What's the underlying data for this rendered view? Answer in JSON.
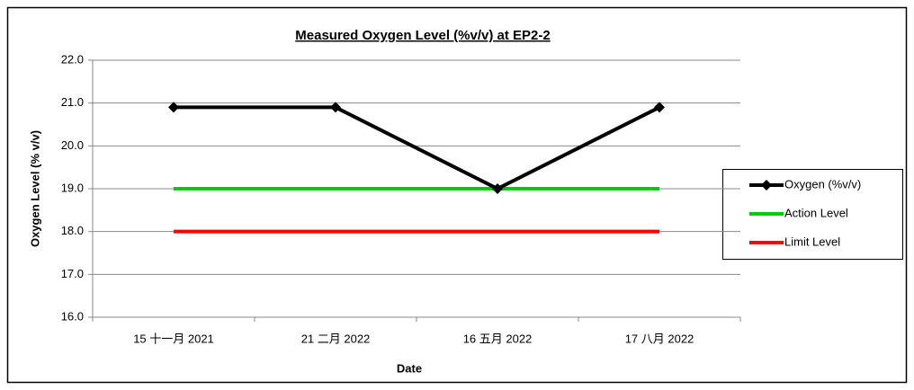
{
  "chart_data": {
    "type": "line",
    "title": "Measured Oxygen Level (%v/v) at EP2-2",
    "xlabel": "Date",
    "ylabel": "Oxygen Level (% v/v)",
    "categories": [
      "15 十一月 2021",
      "21 二月 2022",
      "16 五月 2022",
      "17 八月 2022"
    ],
    "series": [
      {
        "name": "Oxygen (%v/v)",
        "color": "#000000",
        "marker": "diamond",
        "values": [
          20.9,
          20.9,
          19.0,
          20.9
        ]
      },
      {
        "name": "Action Level",
        "color": "#00cc00",
        "values": [
          19.0,
          19.0,
          19.0,
          19.0
        ]
      },
      {
        "name": "Limit Level",
        "color": "#ff0000",
        "values": [
          18.0,
          18.0,
          18.0,
          18.0
        ]
      }
    ],
    "ylim": [
      16,
      22
    ],
    "yticks": [
      {
        "value": 16,
        "label": "16.0"
      },
      {
        "value": 17,
        "label": "17.0"
      },
      {
        "value": 18,
        "label": "18.0"
      },
      {
        "value": 19,
        "label": "19.0"
      },
      {
        "value": 20,
        "label": "20.0"
      },
      {
        "value": 21,
        "label": "21.0"
      },
      {
        "value": 22,
        "label": "22.0"
      }
    ],
    "grid": true,
    "legend": "right"
  }
}
